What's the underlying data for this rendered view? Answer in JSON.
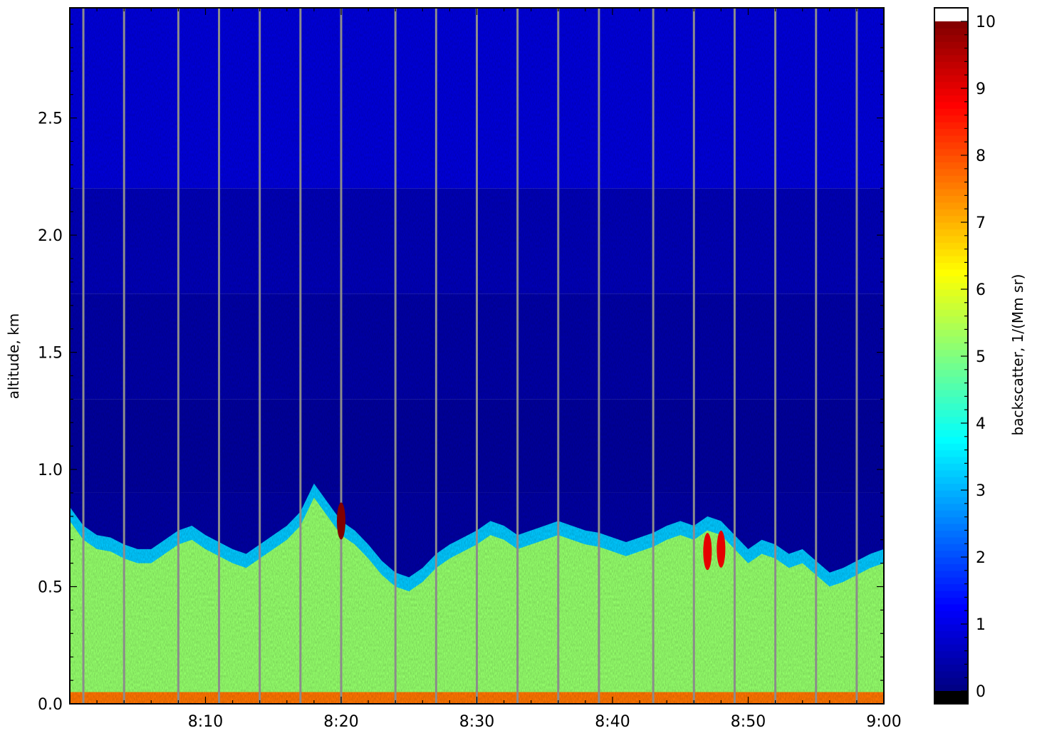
{
  "chart_data": {
    "type": "heatmap",
    "title": "",
    "xlabel": "",
    "ylabel": "altitude, km",
    "x_ticks": [
      "8:10",
      "8:20",
      "8:30",
      "8:40",
      "8:50",
      "9:00"
    ],
    "x_range": [
      "8:00",
      "9:00"
    ],
    "y_ticks": [
      "0.0",
      "0.5",
      "1.0",
      "1.5",
      "2.0",
      "2.5"
    ],
    "y_range": [
      0,
      2.97
    ],
    "colorbar": {
      "label": "backscatter, 1/(Mm sr)",
      "ticks": [
        "0",
        "1",
        "2",
        "3",
        "4",
        "5",
        "6",
        "7",
        "8",
        "9",
        "10"
      ],
      "range": [
        0,
        10
      ],
      "colormap": "jet",
      "under_color": "#000000",
      "over_color": "#ffffff"
    },
    "layer_top_km": [
      0.78,
      0.7,
      0.66,
      0.65,
      0.62,
      0.6,
      0.6,
      0.64,
      0.68,
      0.7,
      0.66,
      0.63,
      0.6,
      0.58,
      0.62,
      0.66,
      0.7,
      0.76,
      0.88,
      0.8,
      0.72,
      0.68,
      0.62,
      0.55,
      0.5,
      0.48,
      0.52,
      0.58,
      0.62,
      0.65,
      0.68,
      0.72,
      0.7,
      0.66,
      0.68,
      0.7,
      0.72,
      0.7,
      0.68,
      0.67,
      0.65,
      0.63,
      0.65,
      0.67,
      0.7,
      0.72,
      0.7,
      0.74,
      0.72,
      0.66,
      0.6,
      0.64,
      0.62,
      0.58,
      0.6,
      0.55,
      0.5,
      0.52,
      0.55,
      0.58,
      0.6
    ],
    "layer_backscatter": 5.2,
    "hotspots": [
      {
        "time": "8:20",
        "altitude_km": 0.78,
        "value": 10
      },
      {
        "time": "8:47",
        "altitude_km": 0.65,
        "value": 9
      },
      {
        "time": "8:48",
        "altitude_km": 0.66,
        "value": 9
      }
    ],
    "gap_times": [
      "8:01",
      "8:04",
      "8:08",
      "8:11",
      "8:14",
      "8:17",
      "8:20",
      "8:24",
      "8:27",
      "8:30",
      "8:33",
      "8:36",
      "8:39",
      "8:43",
      "8:46",
      "8:49",
      "8:52",
      "8:55",
      "8:58"
    ],
    "grid": false
  }
}
